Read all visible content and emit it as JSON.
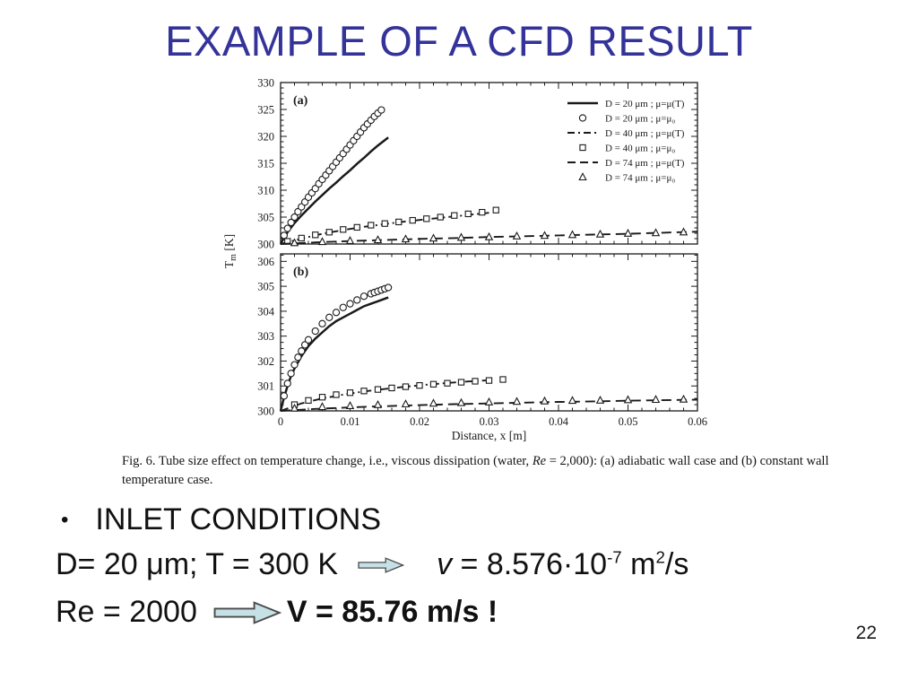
{
  "slide": {
    "title": "EXAMPLE OF A CFD RESULT",
    "title_color": "#333399",
    "arrow_color": "#c5e1e6",
    "page_number": "22"
  },
  "figure": {
    "caption_pre": "Fig. 6. Tube size effect on temperature change, i.e., viscous dissipation (water, ",
    "caption_italic": "Re",
    "caption_post": " = 2,000): (a) adiabatic wall case and (b) constant wall temperature case."
  },
  "inlet": {
    "bullet": "•",
    "heading": "INLET CONDITIONS",
    "conditions_left": "D= 20 μm; T = 300 K",
    "nu_var": "v",
    "nu_eq": " = 8.576·10",
    "nu_sup": "-7",
    "nu_mid": " m",
    "nu_sup2": "2",
    "nu_end": "/s",
    "re_left": "Re = 2000",
    "v_result": "V = 85.76 m/s !"
  },
  "chart_data": [
    {
      "type": "line",
      "panel_label": "(a)",
      "description": "adiabatic wall case",
      "xlabel": "Distance, x [m]",
      "ylabel": "Tm [K]",
      "ylabel_parts": {
        "main": "T",
        "sub": "m",
        "units": " [K]"
      },
      "xlim": [
        0,
        0.06
      ],
      "ylim": [
        300,
        330
      ],
      "xticks": [
        0,
        0.01,
        0.02,
        0.03,
        0.04,
        0.05,
        0.06
      ],
      "xtick_labels": [
        "0",
        "0.01",
        "0.02",
        "0.03",
        "0.04",
        "0.05",
        "0.06"
      ],
      "xminor": 0.002,
      "yticks": [
        300,
        305,
        310,
        315,
        320,
        325,
        330
      ],
      "ytick_labels": [
        "300",
        "305",
        "310",
        "315",
        "320",
        "325",
        "330"
      ],
      "yminor": 1,
      "legend": true,
      "legend_position": "upper right",
      "grid": false,
      "series": [
        {
          "name": "D = 20 μm ; μ=μ(T)",
          "style": "line-solid",
          "points": [
            [
              0,
              300
            ],
            [
              0.0005,
              301.2
            ],
            [
              0.001,
              302.2
            ],
            [
              0.002,
              303.9
            ],
            [
              0.003,
              305.3
            ],
            [
              0.004,
              306.6
            ],
            [
              0.005,
              307.9
            ],
            [
              0.006,
              309.1
            ],
            [
              0.007,
              310.3
            ],
            [
              0.008,
              311.4
            ],
            [
              0.009,
              312.6
            ],
            [
              0.01,
              313.7
            ],
            [
              0.011,
              314.9
            ],
            [
              0.012,
              316
            ],
            [
              0.013,
              317.2
            ],
            [
              0.014,
              318.3
            ],
            [
              0.0155,
              319.8
            ]
          ]
        },
        {
          "name": "D = 20 μm ; μ=μ₀",
          "style": "markers-circle",
          "points": [
            [
              0.0005,
              301.6
            ],
            [
              0.001,
              302.9
            ],
            [
              0.0015,
              304
            ],
            [
              0.002,
              305
            ],
            [
              0.0025,
              306
            ],
            [
              0.003,
              306.9
            ],
            [
              0.0035,
              307.8
            ],
            [
              0.004,
              308.7
            ],
            [
              0.0045,
              309.5
            ],
            [
              0.005,
              310.3
            ],
            [
              0.0055,
              311.2
            ],
            [
              0.006,
              312
            ],
            [
              0.0065,
              312.8
            ],
            [
              0.007,
              313.6
            ],
            [
              0.0075,
              314.4
            ],
            [
              0.008,
              315.2
            ],
            [
              0.0085,
              316
            ],
            [
              0.009,
              316.8
            ],
            [
              0.0095,
              317.6
            ],
            [
              0.01,
              318.4
            ],
            [
              0.0105,
              319.2
            ],
            [
              0.011,
              320
            ],
            [
              0.0115,
              320.8
            ],
            [
              0.012,
              321.6
            ],
            [
              0.0125,
              322.3
            ],
            [
              0.013,
              323
            ],
            [
              0.0135,
              323.7
            ],
            [
              0.014,
              324.3
            ],
            [
              0.0145,
              324.9
            ]
          ]
        },
        {
          "name": "D = 40 μm ; μ=μ(T)",
          "style": "line-dashdot",
          "points": [
            [
              0,
              300
            ],
            [
              0.003,
              301
            ],
            [
              0.006,
              301.9
            ],
            [
              0.009,
              302.6
            ],
            [
              0.012,
              303.2
            ],
            [
              0.015,
              303.7
            ],
            [
              0.018,
              304.2
            ],
            [
              0.021,
              304.6
            ],
            [
              0.024,
              305
            ],
            [
              0.027,
              305.4
            ],
            [
              0.03,
              305.8
            ]
          ]
        },
        {
          "name": "D = 40 μm ; μ=μ₀",
          "style": "markers-square",
          "points": [
            [
              0.001,
              300.5
            ],
            [
              0.003,
              301.1
            ],
            [
              0.005,
              301.7
            ],
            [
              0.007,
              302.2
            ],
            [
              0.009,
              302.7
            ],
            [
              0.011,
              303.1
            ],
            [
              0.013,
              303.5
            ],
            [
              0.015,
              303.8
            ],
            [
              0.017,
              304.1
            ],
            [
              0.019,
              304.4
            ],
            [
              0.021,
              304.7
            ],
            [
              0.023,
              305
            ],
            [
              0.025,
              305.3
            ],
            [
              0.027,
              305.6
            ],
            [
              0.029,
              305.9
            ],
            [
              0.031,
              306.3
            ]
          ]
        },
        {
          "name": "D = 74 μm ; μ=μ(T)",
          "style": "line-dashed",
          "points": [
            [
              0,
              300
            ],
            [
              0.005,
              300.3
            ],
            [
              0.01,
              300.55
            ],
            [
              0.015,
              300.75
            ],
            [
              0.02,
              300.95
            ],
            [
              0.025,
              301.1
            ],
            [
              0.03,
              301.3
            ],
            [
              0.035,
              301.45
            ],
            [
              0.04,
              301.6
            ],
            [
              0.045,
              301.75
            ],
            [
              0.05,
              301.9
            ],
            [
              0.055,
              302.1
            ],
            [
              0.06,
              302.3
            ]
          ]
        },
        {
          "name": "D = 74 μm ; μ=μ₀",
          "style": "markers-triangle",
          "points": [
            [
              0.002,
              300.2
            ],
            [
              0.006,
              300.4
            ],
            [
              0.01,
              300.6
            ],
            [
              0.014,
              300.75
            ],
            [
              0.018,
              300.9
            ],
            [
              0.022,
              301.05
            ],
            [
              0.026,
              301.2
            ],
            [
              0.03,
              301.3
            ],
            [
              0.034,
              301.45
            ],
            [
              0.038,
              301.55
            ],
            [
              0.042,
              301.7
            ],
            [
              0.046,
              301.8
            ],
            [
              0.05,
              301.95
            ],
            [
              0.054,
              302.05
            ],
            [
              0.058,
              302.2
            ]
          ]
        }
      ]
    },
    {
      "type": "line",
      "panel_label": "(b)",
      "description": "constant wall temperature case",
      "xlabel": "Distance, x [m]",
      "ylabel": "Tm [K]",
      "xlim": [
        0,
        0.06
      ],
      "ylim": [
        300,
        306.3
      ],
      "xticks": [
        0,
        0.01,
        0.02,
        0.03,
        0.04,
        0.05,
        0.06
      ],
      "xtick_labels": [
        "0",
        "0.01",
        "0.02",
        "0.03",
        "0.04",
        "0.05",
        "0.06"
      ],
      "xminor": 0.002,
      "yticks": [
        300,
        301,
        302,
        303,
        304,
        305,
        306
      ],
      "ytick_labels": [
        "300",
        "301",
        "302",
        "303",
        "304",
        "305",
        "306"
      ],
      "yminor": 0.25,
      "legend": false,
      "grid": false,
      "series": [
        {
          "name": "D = 20 μm ; μ=μ(T)",
          "style": "line-solid",
          "points": [
            [
              0,
              300
            ],
            [
              0.0005,
              300.55
            ],
            [
              0.001,
              301
            ],
            [
              0.0015,
              301.4
            ],
            [
              0.002,
              301.7
            ],
            [
              0.003,
              302.2
            ],
            [
              0.004,
              302.6
            ],
            [
              0.005,
              302.9
            ],
            [
              0.006,
              303.15
            ],
            [
              0.007,
              303.4
            ],
            [
              0.008,
              303.6
            ],
            [
              0.009,
              303.75
            ],
            [
              0.01,
              303.9
            ],
            [
              0.011,
              304.05
            ],
            [
              0.012,
              304.2
            ],
            [
              0.013,
              304.3
            ],
            [
              0.014,
              304.4
            ],
            [
              0.0155,
              304.55
            ]
          ]
        },
        {
          "name": "D = 20 μm ; μ=μ₀",
          "style": "markers-circle",
          "points": [
            [
              0.0005,
              300.6
            ],
            [
              0.001,
              301.1
            ],
            [
              0.0015,
              301.5
            ],
            [
              0.002,
              301.85
            ],
            [
              0.0025,
              302.15
            ],
            [
              0.003,
              302.4
            ],
            [
              0.0035,
              302.65
            ],
            [
              0.004,
              302.85
            ],
            [
              0.005,
              303.2
            ],
            [
              0.006,
              303.5
            ],
            [
              0.007,
              303.75
            ],
            [
              0.008,
              303.95
            ],
            [
              0.009,
              304.15
            ],
            [
              0.01,
              304.3
            ],
            [
              0.011,
              304.45
            ],
            [
              0.012,
              304.6
            ],
            [
              0.013,
              304.7
            ],
            [
              0.0135,
              304.75
            ],
            [
              0.014,
              304.8
            ],
            [
              0.0145,
              304.85
            ],
            [
              0.015,
              304.9
            ],
            [
              0.0155,
              304.95
            ]
          ]
        },
        {
          "name": "D = 40 μm ; μ=μ(T)",
          "style": "line-dashdot",
          "points": [
            [
              0,
              300
            ],
            [
              0.003,
              300.3
            ],
            [
              0.006,
              300.5
            ],
            [
              0.009,
              300.65
            ],
            [
              0.012,
              300.78
            ],
            [
              0.015,
              300.88
            ],
            [
              0.018,
              300.97
            ],
            [
              0.021,
              301.05
            ],
            [
              0.024,
              301.12
            ],
            [
              0.027,
              301.18
            ],
            [
              0.03,
              301.23
            ]
          ]
        },
        {
          "name": "D = 40 μm ; μ=μ₀",
          "style": "markers-square",
          "points": [
            [
              0.002,
              300.25
            ],
            [
              0.004,
              300.42
            ],
            [
              0.006,
              300.55
            ],
            [
              0.008,
              300.65
            ],
            [
              0.01,
              300.73
            ],
            [
              0.012,
              300.8
            ],
            [
              0.014,
              300.86
            ],
            [
              0.016,
              300.92
            ],
            [
              0.018,
              300.97
            ],
            [
              0.02,
              301.02
            ],
            [
              0.022,
              301.07
            ],
            [
              0.024,
              301.11
            ],
            [
              0.026,
              301.15
            ],
            [
              0.028,
              301.19
            ],
            [
              0.03,
              301.22
            ],
            [
              0.032,
              301.26
            ]
          ]
        },
        {
          "name": "D = 74 μm ; μ=μ(T)",
          "style": "line-dashed",
          "points": [
            [
              0,
              300
            ],
            [
              0.005,
              300.08
            ],
            [
              0.01,
              300.14
            ],
            [
              0.015,
              300.19
            ],
            [
              0.02,
              300.23
            ],
            [
              0.025,
              300.27
            ],
            [
              0.03,
              300.3
            ],
            [
              0.035,
              300.33
            ],
            [
              0.04,
              300.36
            ],
            [
              0.045,
              300.38
            ],
            [
              0.05,
              300.41
            ],
            [
              0.055,
              300.43
            ],
            [
              0.06,
              300.45
            ]
          ]
        },
        {
          "name": "D = 74 μm ; μ=μ₀",
          "style": "markers-triangle",
          "points": [
            [
              0.002,
              300.1
            ],
            [
              0.006,
              300.16
            ],
            [
              0.01,
              300.2
            ],
            [
              0.014,
              300.24
            ],
            [
              0.018,
              300.27
            ],
            [
              0.022,
              300.3
            ],
            [
              0.026,
              300.32
            ],
            [
              0.03,
              300.35
            ],
            [
              0.034,
              300.37
            ],
            [
              0.038,
              300.39
            ],
            [
              0.042,
              300.41
            ],
            [
              0.046,
              300.42
            ],
            [
              0.05,
              300.44
            ],
            [
              0.054,
              300.45
            ],
            [
              0.058,
              300.46
            ]
          ]
        }
      ]
    }
  ]
}
